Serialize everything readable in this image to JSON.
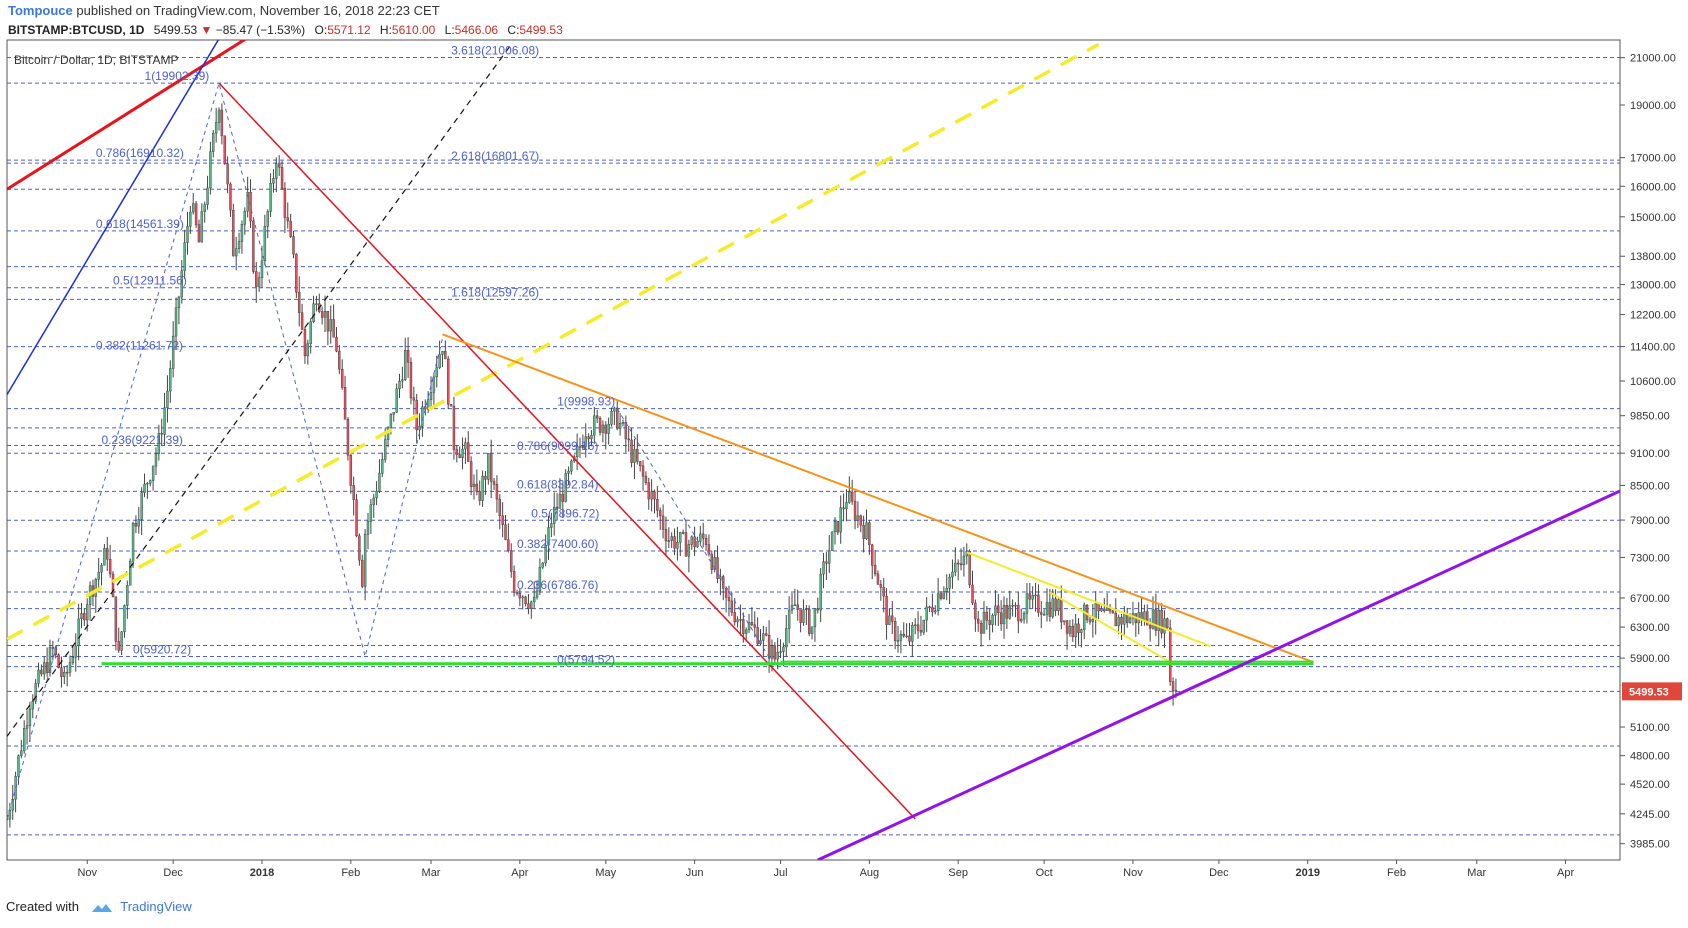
{
  "header": {
    "author": "Tompouce",
    "published": "published on TradingView.com, November 16, 2018 22:23 CET"
  },
  "symbol_bar": {
    "symbol": "BITSTAMP:BTCUSD, 1D",
    "last": "5499.53",
    "change": "−85.47 (−1.53%)",
    "o_label": "O:",
    "o_value": "5571.12",
    "h_label": "H:",
    "h_value": "5610.00",
    "l_label": "L:",
    "l_value": "5466.06",
    "c_label": "C:",
    "c_value": "5499.53"
  },
  "chart_data": {
    "type": "candlestick",
    "title": "Bitcoin / Dollar, 1D, BITSTAMP",
    "log_scale": true,
    "ylim": [
      3850,
      21800
    ],
    "xlim": [
      "2017-10-04",
      "2019-04-20"
    ],
    "x_ticks": [
      {
        "date": "2017-11-01",
        "label": "Nov"
      },
      {
        "date": "2017-12-01",
        "label": "Dec"
      },
      {
        "date": "2018-01-01",
        "label": "2018"
      },
      {
        "date": "2018-02-01",
        "label": "Feb"
      },
      {
        "date": "2018-03-01",
        "label": "Mar"
      },
      {
        "date": "2018-04-01",
        "label": "Apr"
      },
      {
        "date": "2018-05-01",
        "label": "May"
      },
      {
        "date": "2018-06-01",
        "label": "Jun"
      },
      {
        "date": "2018-07-01",
        "label": "Jul"
      },
      {
        "date": "2018-08-01",
        "label": "Aug"
      },
      {
        "date": "2018-09-01",
        "label": "Sep"
      },
      {
        "date": "2018-10-01",
        "label": "Oct"
      },
      {
        "date": "2018-11-01",
        "label": "Nov"
      },
      {
        "date": "2018-12-01",
        "label": "Dec"
      },
      {
        "date": "2019-01-01",
        "label": "2019"
      },
      {
        "date": "2019-02-01",
        "label": "Feb"
      },
      {
        "date": "2019-03-01",
        "label": "Mar"
      },
      {
        "date": "2019-04-01",
        "label": "Apr"
      }
    ],
    "y_ticks": [
      "21000.00",
      "19000.00",
      "17000.00",
      "16000.00",
      "15000.00",
      "13800.00",
      "13000.00",
      "12200.00",
      "11400.00",
      "10600.00",
      "9850.00",
      "9100.00",
      "8500.00",
      "7900.00",
      "7300.00",
      "6700.00",
      "6300.00",
      "5900.00",
      "5100.00",
      "4800.00",
      "4520.00",
      "4245.00",
      "3985.00"
    ],
    "last_price": {
      "value": 5499.53,
      "label": "5499.53",
      "color": "#e0463a"
    },
    "horizontal_levels": [
      21006,
      19902,
      16910,
      16801,
      15900,
      14561,
      13500,
      12911,
      12597,
      11400,
      9998,
      9600,
      9250,
      9099,
      8393,
      7896,
      7400,
      6786,
      6550,
      6060,
      5920,
      5794,
      5499,
      4900,
      4060
    ],
    "fib_labels": [
      {
        "text": "3.618(21006.08)",
        "date": "2018-03-08",
        "value": 21006
      },
      {
        "text": "1(19902.39)",
        "date": "2017-11-21",
        "value": 19902
      },
      {
        "text": "0.786(16910.32)",
        "date": "2017-11-04",
        "value": 16910
      },
      {
        "text": "2.618(16801.67)",
        "date": "2018-03-08",
        "value": 16801
      },
      {
        "text": "0.618(14561.39)",
        "date": "2017-11-04",
        "value": 14561
      },
      {
        "text": "0.5(12911.56)",
        "date": "2017-11-10",
        "value": 12911
      },
      {
        "text": "1.618(12597.26)",
        "date": "2018-03-08",
        "value": 12597
      },
      {
        "text": "0.382(11261.72)",
        "date": "2017-11-04",
        "value": 11261
      },
      {
        "text": "0.236(9221.39)",
        "date": "2017-11-06",
        "value": 9221
      },
      {
        "text": "0(5920.72)",
        "date": "2017-11-17",
        "value": 5920
      },
      {
        "text": "1(9998.93)",
        "date": "2018-04-14",
        "value": 9998
      },
      {
        "text": "0.786(9099.16)",
        "date": "2018-03-31",
        "value": 9099
      },
      {
        "text": "0.618(8392.84)",
        "date": "2018-03-31",
        "value": 8393
      },
      {
        "text": "0.5(7896.72)",
        "date": "2018-04-05",
        "value": 7896
      },
      {
        "text": "0.382(7400.60)",
        "date": "2018-03-31",
        "value": 7400
      },
      {
        "text": "0.236(6786.76)",
        "date": "2018-03-31",
        "value": 6786
      },
      {
        "text": "0(5794.52)",
        "date": "2018-04-14",
        "value": 5794
      }
    ],
    "trend_lines": [
      {
        "color": "#e8131b",
        "width": 3,
        "dash": "",
        "from": {
          "date": "2017-10-04",
          "value": 15900
        },
        "to": {
          "date": "2018-01-03",
          "value": 22500
        }
      },
      {
        "color": "#1b2fd6",
        "width": 1.5,
        "dash": "",
        "from": {
          "date": "2017-10-04",
          "value": 10300
        },
        "to": {
          "date": "2017-12-22",
          "value": 23000
        }
      },
      {
        "color": "#111111",
        "width": 1.2,
        "dash": "6,5",
        "from": {
          "date": "2017-10-04",
          "value": 5000
        },
        "to": {
          "date": "2018-03-29",
          "value": 21600
        }
      },
      {
        "color": "#f5eb2a",
        "width": 3.5,
        "dash": "18,12",
        "from": {
          "date": "2017-10-04",
          "value": 6140
        },
        "to": {
          "date": "2018-10-20",
          "value": 21600
        }
      },
      {
        "color": "#e8131b",
        "width": 1.5,
        "dash": "",
        "from": {
          "date": "2017-12-17",
          "value": 19900
        },
        "to": {
          "date": "2018-08-17",
          "value": 4200
        }
      },
      {
        "color": "#f7931a",
        "width": 2,
        "dash": "",
        "from": {
          "date": "2018-03-05",
          "value": 11700
        },
        "to": {
          "date": "2019-01-03",
          "value": 5850
        }
      },
      {
        "color": "#f5eb2a",
        "width": 2,
        "dash": "",
        "from": {
          "date": "2018-09-04",
          "value": 7380
        },
        "to": {
          "date": "2018-11-28",
          "value": 6050
        }
      },
      {
        "color": "#f5eb2a",
        "width": 2,
        "dash": "",
        "from": {
          "date": "2018-10-03",
          "value": 6780
        },
        "to": {
          "date": "2018-11-14",
          "value": 5850
        }
      },
      {
        "color": "#2ee026",
        "width": 3,
        "dash": "",
        "from": {
          "date": "2017-11-06",
          "value": 5830
        },
        "to": {
          "date": "2019-01-03",
          "value": 5830
        }
      },
      {
        "color": "#2ee026",
        "width": 1.5,
        "dash": "",
        "from": {
          "date": "2018-07-01",
          "value": 5860
        },
        "to": {
          "date": "2019-01-03",
          "value": 5860
        }
      },
      {
        "color": "#9312e8",
        "width": 3,
        "dash": "",
        "from": {
          "date": "2018-07-14",
          "value": 3850
        },
        "to": {
          "date": "2019-04-20",
          "value": 8400
        }
      }
    ],
    "zigzags": [
      {
        "color": "#4b62d9",
        "dash": "4,4",
        "points": [
          {
            "date": "2017-10-04",
            "value": 4200
          },
          {
            "date": "2017-12-17",
            "value": 19900
          },
          {
            "date": "2018-02-06",
            "value": 5920
          },
          {
            "date": "2018-03-05",
            "value": 11600
          }
        ]
      },
      {
        "color": "#4b62d9",
        "dash": "4,4",
        "points": [
          {
            "date": "2018-05-05",
            "value": 9998
          },
          {
            "date": "2018-06-29",
            "value": 5794
          }
        ]
      }
    ],
    "candle_colors": {
      "up": "#53b987",
      "down": "#eb4d5c",
      "wick": "#444444"
    },
    "ohlc_keypoints": [
      [
        "2017-10-04",
        4200
      ],
      [
        "2017-10-12",
        5400
      ],
      [
        "2017-10-20",
        6000
      ],
      [
        "2017-10-24",
        5600
      ],
      [
        "2017-11-01",
        6700
      ],
      [
        "2017-11-08",
        7400
      ],
      [
        "2017-11-12",
        5900
      ],
      [
        "2017-11-17",
        7800
      ],
      [
        "2017-11-26",
        9300
      ],
      [
        "2017-11-29",
        10400
      ],
      [
        "2017-12-07",
        15500
      ],
      [
        "2017-12-10",
        14200
      ],
      [
        "2017-12-17",
        19200
      ],
      [
        "2017-12-22",
        14000
      ],
      [
        "2017-12-27",
        15500
      ],
      [
        "2017-12-30",
        12800
      ],
      [
        "2018-01-06",
        17100
      ],
      [
        "2018-01-12",
        13600
      ],
      [
        "2018-01-16",
        11200
      ],
      [
        "2018-01-20",
        12800
      ],
      [
        "2018-01-27",
        11400
      ],
      [
        "2018-02-05",
        7000
      ],
      [
        "2018-02-06",
        7700
      ],
      [
        "2018-02-10",
        8500
      ],
      [
        "2018-02-20",
        11200
      ],
      [
        "2018-02-24",
        9600
      ],
      [
        "2018-03-05",
        11500
      ],
      [
        "2018-03-09",
        9300
      ],
      [
        "2018-03-13",
        9100
      ],
      [
        "2018-03-17",
        8200
      ],
      [
        "2018-03-21",
        8900
      ],
      [
        "2018-03-30",
        6900
      ],
      [
        "2018-04-06",
        6600
      ],
      [
        "2018-04-12",
        7900
      ],
      [
        "2018-04-20",
        8900
      ],
      [
        "2018-04-24",
        9600
      ],
      [
        "2018-05-05",
        9800
      ],
      [
        "2018-05-10",
        9100
      ],
      [
        "2018-05-17",
        8300
      ],
      [
        "2018-05-23",
        7600
      ],
      [
        "2018-05-29",
        7500
      ],
      [
        "2018-06-05",
        7600
      ],
      [
        "2018-06-11",
        6700
      ],
      [
        "2018-06-17",
        6400
      ],
      [
        "2018-06-24",
        6200
      ],
      [
        "2018-06-29",
        5900
      ],
      [
        "2018-07-06",
        6600
      ],
      [
        "2018-07-12",
        6300
      ],
      [
        "2018-07-17",
        7300
      ],
      [
        "2018-07-24",
        8300
      ],
      [
        "2018-07-31",
        7700
      ],
      [
        "2018-08-08",
        6300
      ],
      [
        "2018-08-14",
        6100
      ],
      [
        "2018-08-20",
        6400
      ],
      [
        "2018-08-27",
        6900
      ],
      [
        "2018-09-04",
        7300
      ],
      [
        "2018-09-08",
        6300
      ],
      [
        "2018-09-14",
        6500
      ],
      [
        "2018-09-20",
        6500
      ],
      [
        "2018-09-25",
        6600
      ],
      [
        "2018-10-05",
        6600
      ],
      [
        "2018-10-11",
        6250
      ],
      [
        "2018-10-16",
        6500
      ],
      [
        "2018-10-25",
        6400
      ],
      [
        "2018-11-06",
        6450
      ],
      [
        "2018-11-13",
        6350
      ],
      [
        "2018-11-14",
        5650
      ],
      [
        "2018-11-16",
        5499
      ]
    ]
  },
  "footer": {
    "created_with": "Created with",
    "brand": "TradingView"
  }
}
